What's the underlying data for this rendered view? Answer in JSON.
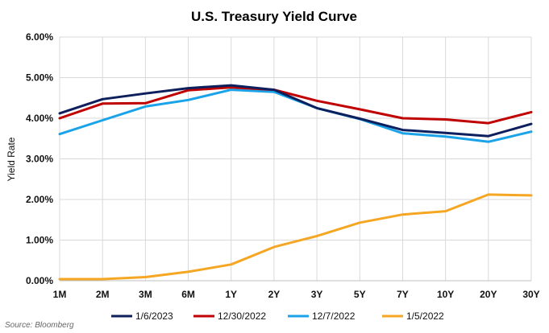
{
  "chart_data": {
    "type": "line",
    "title": "U.S. Treasury Yield Curve",
    "xlabel": "",
    "ylabel": "Yield Rate",
    "categories": [
      "1M",
      "2M",
      "3M",
      "6M",
      "1Y",
      "2Y",
      "3Y",
      "5Y",
      "7Y",
      "10Y",
      "20Y",
      "30Y"
    ],
    "ylim": [
      0,
      6
    ],
    "yticks": [
      "0.00%",
      "1.00%",
      "2.00%",
      "3.00%",
      "4.00%",
      "5.00%",
      "6.00%"
    ],
    "grid": true,
    "legend_position": "bottom",
    "series": [
      {
        "name": "1/6/2023",
        "color": "#0d1f5c",
        "values": [
          4.12,
          4.47,
          4.61,
          4.74,
          4.81,
          4.7,
          4.25,
          3.99,
          3.71,
          3.64,
          3.56,
          3.86
        ]
      },
      {
        "name": "12/30/2022",
        "color": "#c00000",
        "values": [
          4.0,
          4.36,
          4.37,
          4.69,
          4.76,
          4.7,
          4.43,
          4.22,
          4.0,
          3.97,
          3.88,
          4.15
        ]
      },
      {
        "name": "12/7/2022",
        "color": "#1aa3e8",
        "values": [
          3.61,
          3.95,
          4.29,
          4.45,
          4.7,
          4.65,
          4.25,
          3.98,
          3.63,
          3.55,
          3.42,
          3.67
        ]
      },
      {
        "name": "1/5/2022",
        "color": "#f5a623",
        "values": [
          0.04,
          0.04,
          0.09,
          0.22,
          0.4,
          0.83,
          1.1,
          1.43,
          1.63,
          1.71,
          2.12,
          2.1
        ]
      }
    ],
    "source": "Source: Bloomberg"
  }
}
